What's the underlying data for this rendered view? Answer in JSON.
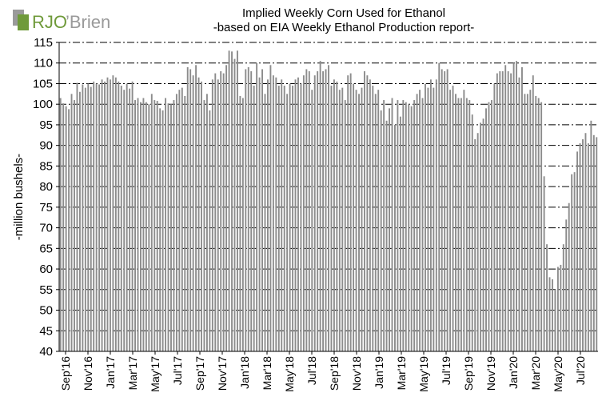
{
  "logo": {
    "text_main": "RJO",
    "text_second": "’Brien",
    "brand_color": "#6f9a3a",
    "accent_color": "#9a9a9a"
  },
  "colors": {
    "bar": "#8c8c8c",
    "grid": "#000000",
    "axis": "#000000"
  },
  "chart_data": {
    "type": "bar",
    "title": "Implied  Weekly Corn Used for Ethanol",
    "subtitle": "-based on EIA  Weekly Ethanol Production report-",
    "ylabel": "-million  bushels-",
    "xlabel": "",
    "ylim": [
      40,
      115
    ],
    "yticks": [
      40,
      45,
      50,
      55,
      60,
      65,
      70,
      75,
      80,
      85,
      90,
      95,
      100,
      105,
      110,
      115
    ],
    "grid": "horizontal dash-dot",
    "xtick_labels": [
      "Sep'16",
      "Nov'16",
      "Jan'17",
      "Mar'17",
      "May'17",
      "Jul'17",
      "Sep'17",
      "Nov'17",
      "Jan'18",
      "Mar'18",
      "May'18",
      "Jul'18",
      "Sep'18",
      "Nov'18",
      "Jan'19",
      "Mar'19",
      "May'19",
      "Jul'19",
      "Sep'19",
      "Nov'19",
      "Jan'20",
      "Mar'20",
      "May'20",
      "Jul'20"
    ],
    "series": [
      {
        "values": [
          101.5,
          100.2,
          99.5,
          98.8,
          102.5,
          101.0,
          105.2,
          103.0,
          104.8,
          104.0,
          105.0,
          104.2,
          105.5,
          105.0,
          104.8,
          106.0,
          105.5,
          106.5,
          106.0,
          107.0,
          106.5,
          105.5,
          104.5,
          103.5,
          105.0,
          103.8,
          105.5,
          101.0,
          101.5,
          100.5,
          101.5,
          100.5,
          100.0,
          102.5,
          101.0,
          100.8,
          99.0,
          98.5,
          101.5,
          100.2,
          100.0,
          101.0,
          102.5,
          103.5,
          104.0,
          102.0,
          109.0,
          108.5,
          107.0,
          109.5,
          106.5,
          105.5,
          101.0,
          102.5,
          98.5,
          106.0,
          107.5,
          106.0,
          108.0,
          107.5,
          109.5,
          113.0,
          112.8,
          111.0,
          113.0,
          102.0,
          101.5,
          108.5,
          109.0,
          108.0,
          104.5,
          110.0,
          106.5,
          108.5,
          102.5,
          106.0,
          109.5,
          107.0,
          106.5,
          104.5,
          106.0,
          104.5,
          102.5,
          105.0,
          104.5,
          106.0,
          106.5,
          105.0,
          107.0,
          108.5,
          108.0,
          103.5,
          107.0,
          108.0,
          110.5,
          108.0,
          108.5,
          109.5,
          104.5,
          106.0,
          105.5,
          103.5,
          104.0,
          101.0,
          107.0,
          107.5,
          105.0,
          103.5,
          102.5,
          104.0,
          108.0,
          107.0,
          106.0,
          104.5,
          102.5,
          103.5,
          98.5,
          101.0,
          96.0,
          99.0,
          101.5,
          95.0,
          101.0,
          97.0,
          101.0,
          100.5,
          100.0,
          99.5,
          101.0,
          102.5,
          103.5,
          101.5,
          105.0,
          104.0,
          106.0,
          104.0,
          106.0,
          110.0,
          108.5,
          108.0,
          108.5,
          103.5,
          104.5,
          102.5,
          101.5,
          101.5,
          103.5,
          101.5,
          101.0,
          97.5,
          91.5,
          93.0,
          95.5,
          96.5,
          99.0,
          100.5,
          101.0,
          105.0,
          107.5,
          108.0,
          108.0,
          109.5,
          108.0,
          107.5,
          110.0,
          110.5,
          106.5,
          109.0,
          102.5,
          102.5,
          103.5,
          107.0,
          102.0,
          101.5,
          100.5,
          82.5,
          66.0,
          58.0,
          57.5,
          55.0,
          60.5,
          61.0,
          66.0,
          72.0,
          76.0,
          83.0,
          83.5,
          88.5,
          90.5,
          91.5,
          93.0,
          90.5,
          96.0,
          92.5,
          92.0
        ]
      }
    ]
  }
}
